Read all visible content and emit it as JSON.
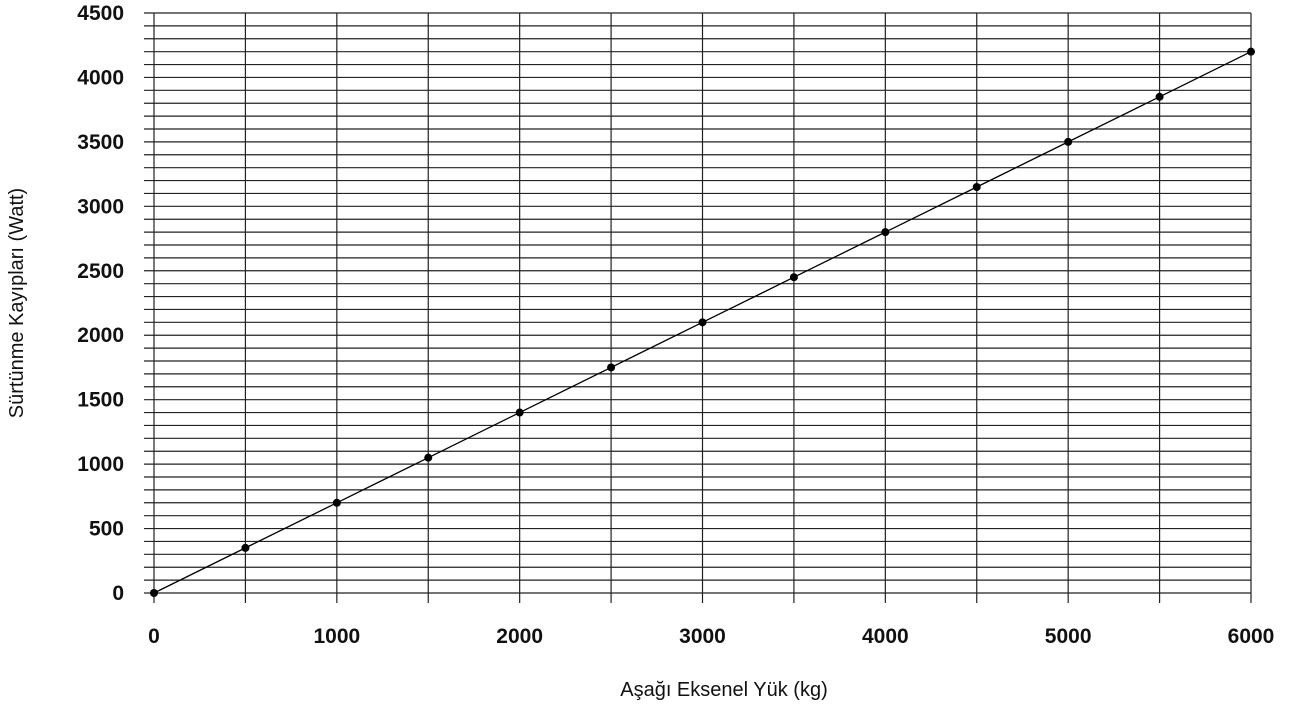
{
  "chart_data": {
    "type": "line",
    "title": "",
    "xlabel": "Aşağı Eksenel Yük (kg)",
    "ylabel": "Sürtünme Kayıpları (Watt)",
    "xlim": [
      0,
      6000
    ],
    "ylim": [
      0,
      4500
    ],
    "x_ticks": [
      0,
      1000,
      2000,
      3000,
      4000,
      5000,
      6000
    ],
    "y_ticks": [
      0,
      500,
      1000,
      1500,
      2000,
      2500,
      3000,
      3500,
      4000,
      4500
    ],
    "x_gridlines_every": 500,
    "y_gridlines_every": 100,
    "grid": true,
    "legend": "none",
    "series": [
      {
        "x": [
          0,
          500,
          1000,
          1500,
          2000,
          2500,
          3000,
          3500,
          4000,
          4500,
          5000,
          5500,
          6000
        ],
        "y": [
          0,
          350,
          700,
          1050,
          1400,
          1750,
          2100,
          2450,
          2800,
          3150,
          3500,
          3850,
          4200
        ],
        "markers": true,
        "color": "#000000"
      }
    ]
  }
}
